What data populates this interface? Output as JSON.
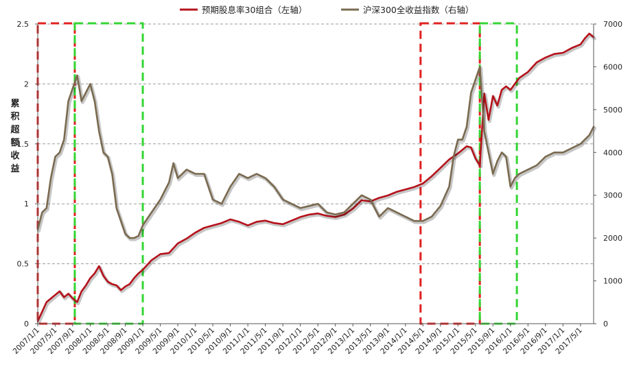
{
  "chart_data": {
    "type": "line",
    "ylabel_left": "累积超额收益",
    "ylim_left": [
      0,
      2.5
    ],
    "yticks_left": [
      "0",
      "0.5",
      "1",
      "1.5",
      "2",
      "2.5"
    ],
    "ylim_right": [
      0,
      7000
    ],
    "yticks_right": [
      "0",
      "1000",
      "2000",
      "3000",
      "4000",
      "5000",
      "6000",
      "7000"
    ],
    "x_tick_labels": [
      "2007/1/1",
      "2007/5/1",
      "2007/9/1",
      "2008/1/1",
      "2008/5/1",
      "2008/9/1",
      "2009/1/1",
      "2009/5/1",
      "2009/9/1",
      "2010/1/1",
      "2010/5/1",
      "2010/9/1",
      "2011/1/1",
      "2011/5/1",
      "2011/9/1",
      "2012/1/1",
      "2012/5/1",
      "2012/9/1",
      "2013/1/1",
      "2013/5/1",
      "2013/9/1",
      "2014/1/1",
      "2014/5/1",
      "2014/9/1",
      "2015/1/1",
      "2015/5/1",
      "2015/9/1",
      "2016/1/1",
      "2016/5/1",
      "2016/9/1",
      "2017/1/1",
      "2017/5/1"
    ],
    "x_range": [
      "2007/1/1",
      "2017/8/1"
    ],
    "grid": "horizontal dashed",
    "legend_position": "top",
    "series": [
      {
        "name": "预期股息率30组合（左轴）",
        "axis": "left",
        "color": "#b5121b",
        "x": [
          "2007/1/1",
          "2007/2/1",
          "2007/3/1",
          "2007/4/1",
          "2007/5/1",
          "2007/6/1",
          "2007/7/1",
          "2007/8/1",
          "2007/9/1",
          "2007/10/1",
          "2007/11/1",
          "2007/12/1",
          "2008/1/1",
          "2008/2/1",
          "2008/3/1",
          "2008/4/1",
          "2008/5/1",
          "2008/6/1",
          "2008/7/1",
          "2008/8/1",
          "2008/9/1",
          "2008/10/1",
          "2008/11/1",
          "2008/12/1",
          "2009/1/1",
          "2009/3/1",
          "2009/5/1",
          "2009/7/1",
          "2009/9/1",
          "2009/11/1",
          "2010/1/1",
          "2010/3/1",
          "2010/5/1",
          "2010/7/1",
          "2010/9/1",
          "2010/11/1",
          "2011/1/1",
          "2011/3/1",
          "2011/5/1",
          "2011/7/1",
          "2011/9/1",
          "2011/11/1",
          "2012/1/1",
          "2012/3/1",
          "2012/5/1",
          "2012/7/1",
          "2012/9/1",
          "2012/11/1",
          "2013/1/1",
          "2013/3/1",
          "2013/5/1",
          "2013/7/1",
          "2013/9/1",
          "2013/11/1",
          "2014/1/1",
          "2014/3/1",
          "2014/5/1",
          "2014/7/1",
          "2014/9/1",
          "2014/11/1",
          "2015/1/1",
          "2015/2/1",
          "2015/3/1",
          "2015/4/1",
          "2015/5/1",
          "2015/6/1",
          "2015/7/1",
          "2015/8/1",
          "2015/9/1",
          "2015/10/1",
          "2015/11/1",
          "2015/12/1",
          "2016/1/1",
          "2016/2/1",
          "2016/3/1",
          "2016/5/1",
          "2016/7/1",
          "2016/9/1",
          "2016/11/1",
          "2017/1/1",
          "2017/3/1",
          "2017/5/1",
          "2017/6/1",
          "2017/7/1",
          "2017/8/1"
        ],
        "y": [
          0.02,
          0.1,
          0.18,
          0.21,
          0.24,
          0.27,
          0.22,
          0.25,
          0.21,
          0.18,
          0.27,
          0.32,
          0.38,
          0.42,
          0.48,
          0.4,
          0.35,
          0.33,
          0.32,
          0.28,
          0.31,
          0.33,
          0.38,
          0.42,
          0.45,
          0.53,
          0.58,
          0.59,
          0.67,
          0.71,
          0.76,
          0.8,
          0.82,
          0.84,
          0.87,
          0.85,
          0.82,
          0.85,
          0.86,
          0.84,
          0.83,
          0.86,
          0.89,
          0.91,
          0.92,
          0.9,
          0.89,
          0.91,
          0.96,
          1.03,
          1.02,
          1.05,
          1.07,
          1.1,
          1.12,
          1.14,
          1.17,
          1.23,
          1.3,
          1.37,
          1.42,
          1.45,
          1.48,
          1.47,
          1.38,
          1.32,
          1.92,
          1.7,
          1.9,
          1.82,
          1.95,
          1.98,
          1.95,
          2.0,
          2.05,
          2.1,
          2.18,
          2.22,
          2.25,
          2.26,
          2.3,
          2.33,
          2.38,
          2.42,
          2.39
        ]
      },
      {
        "name": "沪深300全收益指数（右轴）",
        "axis": "right",
        "color": "#7a6a4f",
        "x": [
          "2007/1/1",
          "2007/2/1",
          "2007/3/1",
          "2007/4/1",
          "2007/5/1",
          "2007/6/1",
          "2007/7/1",
          "2007/8/1",
          "2007/9/1",
          "2007/10/1",
          "2007/11/1",
          "2007/12/1",
          "2008/1/1",
          "2008/2/1",
          "2008/3/1",
          "2008/4/1",
          "2008/5/1",
          "2008/6/1",
          "2008/7/1",
          "2008/8/1",
          "2008/9/1",
          "2008/10/1",
          "2008/11/1",
          "2008/12/1",
          "2009/1/1",
          "2009/3/1",
          "2009/5/1",
          "2009/7/1",
          "2009/8/1",
          "2009/9/1",
          "2009/11/1",
          "2010/1/1",
          "2010/3/1",
          "2010/5/1",
          "2010/7/1",
          "2010/9/1",
          "2010/11/1",
          "2011/1/1",
          "2011/3/1",
          "2011/5/1",
          "2011/7/1",
          "2011/9/1",
          "2011/11/1",
          "2012/1/1",
          "2012/3/1",
          "2012/5/1",
          "2012/7/1",
          "2012/9/1",
          "2012/11/1",
          "2013/1/1",
          "2013/3/1",
          "2013/5/1",
          "2013/7/1",
          "2013/9/1",
          "2013/11/1",
          "2014/1/1",
          "2014/3/1",
          "2014/5/1",
          "2014/7/1",
          "2014/9/1",
          "2014/11/1",
          "2014/12/1",
          "2015/1/1",
          "2015/2/1",
          "2015/3/1",
          "2015/4/1",
          "2015/5/1",
          "2015/6/1",
          "2015/7/1",
          "2015/8/1",
          "2015/9/1",
          "2015/10/1",
          "2015/11/1",
          "2015/12/1",
          "2016/1/1",
          "2016/2/1",
          "2016/3/1",
          "2016/5/1",
          "2016/7/1",
          "2016/9/1",
          "2016/11/1",
          "2017/1/1",
          "2017/3/1",
          "2017/5/1",
          "2017/6/1",
          "2017/7/1",
          "2017/8/1"
        ],
        "y": [
          2200,
          2600,
          2700,
          3400,
          3900,
          4000,
          4300,
          5200,
          5500,
          5800,
          5200,
          5400,
          5600,
          5200,
          4500,
          4000,
          3900,
          3500,
          2700,
          2400,
          2100,
          2000,
          2000,
          2050,
          2300,
          2600,
          2900,
          3300,
          3750,
          3400,
          3600,
          3500,
          3500,
          2900,
          2800,
          3200,
          3500,
          3400,
          3500,
          3400,
          3200,
          2900,
          2800,
          2700,
          2750,
          2800,
          2600,
          2550,
          2600,
          2800,
          3000,
          2900,
          2500,
          2700,
          2600,
          2500,
          2400,
          2400,
          2500,
          2750,
          3200,
          3900,
          4300,
          4300,
          4600,
          5400,
          5700,
          6000,
          4500,
          4000,
          3500,
          3800,
          4000,
          3900,
          3200,
          3400,
          3500,
          3600,
          3700,
          3900,
          4000,
          4000,
          4100,
          4200,
          4300,
          4400,
          4600
        ]
      }
    ],
    "highlight_boxes": [
      {
        "color": "#e02020",
        "x_start": "2007/1/1",
        "x_end": "2007/9/15"
      },
      {
        "color": "#33d633",
        "x_start": "2007/9/15",
        "x_end": "2009/1/1"
      },
      {
        "color": "#e02020",
        "x_start": "2014/4/15",
        "x_end": "2015/6/1"
      },
      {
        "color": "#33d633",
        "x_start": "2015/6/1",
        "x_end": "2016/2/15"
      }
    ]
  }
}
